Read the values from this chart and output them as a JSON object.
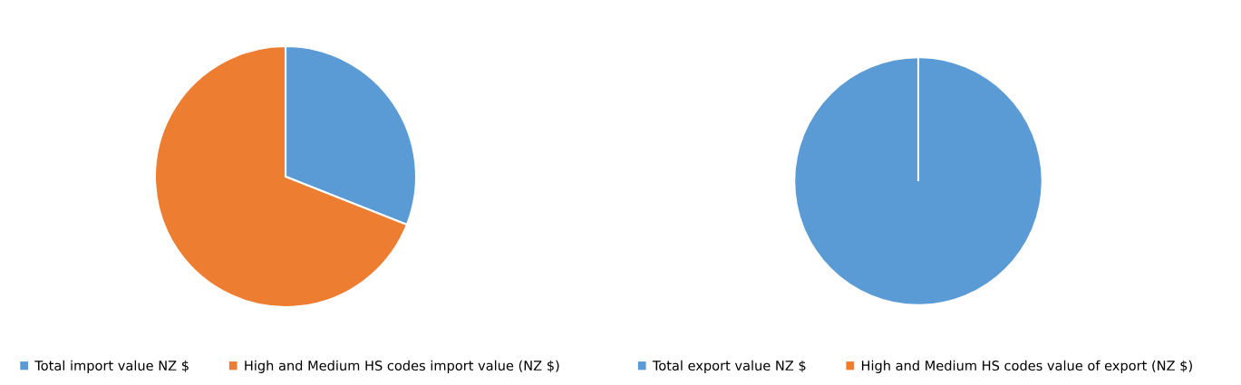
{
  "chart_data": [
    {
      "type": "pie",
      "categories": [
        "Total import value NZ $",
        "High and Medium HS codes import value (NZ $)"
      ],
      "values": [
        31,
        69
      ],
      "colors": [
        "#5b9bd5",
        "#ed7d31"
      ],
      "legend": "bottom"
    },
    {
      "type": "pie",
      "categories": [
        "Total export value NZ $",
        "High and Medium HS codes value of export (NZ $)"
      ],
      "values": [
        100,
        0
      ],
      "colors": [
        "#5b9bd5",
        "#ed7d31"
      ],
      "legend": "bottom"
    }
  ]
}
